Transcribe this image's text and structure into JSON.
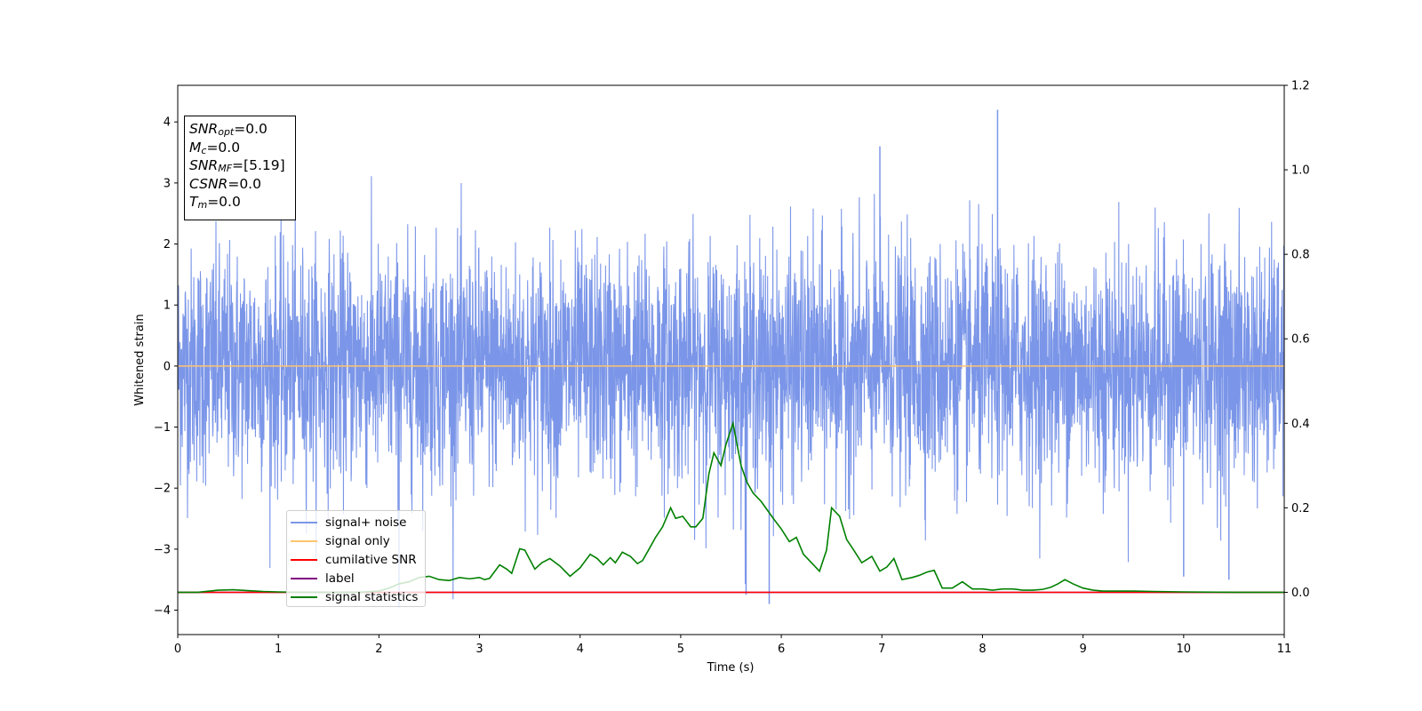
{
  "chart_data": {
    "type": "line",
    "xlabel": "Time (s)",
    "ylabel": "Whitened strain",
    "xlim": [
      0,
      11
    ],
    "ylim": [
      -4.4,
      4.6
    ],
    "y2lim": [
      -0.1,
      1.2
    ],
    "x_ticks": [
      "0",
      "1",
      "2",
      "3",
      "4",
      "5",
      "6",
      "7",
      "8",
      "9",
      "10",
      "11"
    ],
    "y_ticks": [
      "4",
      "3",
      "2",
      "1",
      "0",
      "−1",
      "−2",
      "−3",
      "−4"
    ],
    "y2_ticks": [
      "1.2",
      "1.0",
      "0.8",
      "0.6",
      "0.4",
      "0.2",
      "0.0"
    ],
    "grid": false,
    "legend_position": "lower-left",
    "annotation": {
      "snr_opt": {
        "symbol": "SNR",
        "sub": "opt",
        "value": "=0.0"
      },
      "mc": {
        "symbol": "M",
        "sub": "c",
        "value": "=0.0"
      },
      "snr_mf": {
        "symbol": "SNR",
        "sub": "MF",
        "value": "=[5.19]"
      },
      "csnr": {
        "symbol": "CSNR",
        "value": "=0.0"
      },
      "tm": {
        "symbol": "T",
        "sub": "m",
        "value": "=0.0"
      }
    },
    "series": [
      {
        "name": "signal+ noise",
        "color": "#7b96e8",
        "axis": "left",
        "description": "noisy whitened strain, values mostly within -2.5..2.5",
        "envelope_range": [
          -3.9,
          4.2
        ],
        "peaks": [
          [
            8.15,
            4.2
          ],
          [
            6.98,
            3.6
          ],
          [
            5.88,
            -3.9
          ],
          [
            2.2,
            -3.95
          ],
          [
            5.65,
            -3.75
          ],
          [
            10.45,
            -3.5
          ],
          [
            10.0,
            -3.45
          ]
        ]
      },
      {
        "name": "signal only",
        "color": "#ffc46e",
        "axis": "left",
        "x": [
          0,
          11
        ],
        "y": [
          0,
          0
        ]
      },
      {
        "name": "cumilative SNR",
        "color": "#ff0000",
        "axis": "right",
        "x": [
          0,
          11
        ],
        "y": [
          0,
          0
        ]
      },
      {
        "name": "label",
        "color": "#800080",
        "axis": "right",
        "x": [
          0,
          11
        ],
        "y": [
          0,
          0
        ]
      },
      {
        "name": "signal statistics",
        "color": "#008000",
        "axis": "right",
        "x": [
          0,
          0.2,
          0.4,
          0.55,
          0.7,
          0.85,
          1.0,
          1.2,
          1.5,
          1.8,
          2.0,
          2.1,
          2.2,
          2.3,
          2.4,
          2.5,
          2.6,
          2.7,
          2.8,
          2.9,
          3.0,
          3.05,
          3.1,
          3.2,
          3.27,
          3.32,
          3.4,
          3.45,
          3.55,
          3.62,
          3.7,
          3.8,
          3.9,
          4.0,
          4.1,
          4.17,
          4.23,
          4.3,
          4.35,
          4.42,
          4.5,
          4.57,
          4.62,
          4.68,
          4.75,
          4.82,
          4.9,
          4.95,
          5.02,
          5.1,
          5.15,
          5.22,
          5.28,
          5.33,
          5.4,
          5.45,
          5.52,
          5.6,
          5.66,
          5.72,
          5.8,
          5.86,
          5.92,
          6.0,
          6.08,
          6.15,
          6.22,
          6.3,
          6.38,
          6.45,
          6.5,
          6.58,
          6.65,
          6.72,
          6.8,
          6.9,
          6.98,
          7.05,
          7.12,
          7.2,
          7.3,
          7.37,
          7.45,
          7.52,
          7.6,
          7.7,
          7.8,
          7.9,
          8.0,
          8.1,
          8.2,
          8.3,
          8.4,
          8.5,
          8.6,
          8.68,
          8.75,
          8.82,
          8.9,
          9.0,
          9.1,
          9.2,
          9.3,
          9.5,
          9.7,
          10.0,
          10.5,
          11.0
        ],
        "y": [
          0.0,
          0.0,
          0.005,
          0.006,
          0.004,
          0.002,
          0.001,
          0.0,
          0.0,
          0.0,
          0.003,
          0.01,
          0.02,
          0.025,
          0.035,
          0.038,
          0.03,
          0.028,
          0.035,
          0.032,
          0.035,
          0.03,
          0.033,
          0.065,
          0.055,
          0.045,
          0.103,
          0.1,
          0.055,
          0.07,
          0.08,
          0.062,
          0.038,
          0.058,
          0.09,
          0.08,
          0.065,
          0.082,
          0.07,
          0.095,
          0.085,
          0.068,
          0.075,
          0.1,
          0.13,
          0.155,
          0.2,
          0.175,
          0.18,
          0.155,
          0.155,
          0.175,
          0.28,
          0.33,
          0.3,
          0.35,
          0.4,
          0.3,
          0.26,
          0.235,
          0.215,
          0.195,
          0.175,
          0.15,
          0.12,
          0.13,
          0.09,
          0.07,
          0.05,
          0.1,
          0.2,
          0.18,
          0.125,
          0.1,
          0.07,
          0.085,
          0.05,
          0.06,
          0.08,
          0.03,
          0.035,
          0.04,
          0.048,
          0.052,
          0.01,
          0.01,
          0.025,
          0.008,
          0.008,
          0.005,
          0.008,
          0.008,
          0.005,
          0.005,
          0.007,
          0.012,
          0.02,
          0.03,
          0.02,
          0.01,
          0.005,
          0.003,
          0.003,
          0.003,
          0.002,
          0.001,
          0.0,
          0.0
        ]
      }
    ]
  }
}
